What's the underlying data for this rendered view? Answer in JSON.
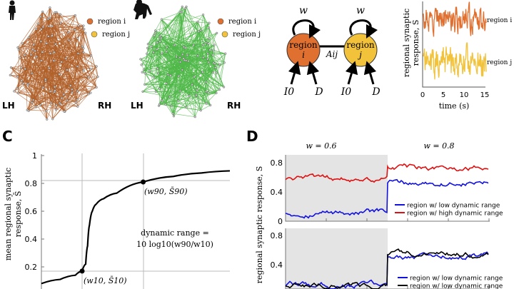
{
  "panels": {
    "c_label": "C",
    "d_label": "D"
  },
  "panel_a": {
    "brains": [
      {
        "species": "human",
        "color": "#b0602a",
        "lh": "LH",
        "rh": "RH"
      },
      {
        "species": "chimpanzee",
        "color": "#4fb848",
        "lh": "LH",
        "rh": "RH"
      }
    ],
    "region_i": "region i",
    "region_j": "region j",
    "region_i_color": "#e07030",
    "region_j_color": "#f2c23a"
  },
  "panel_b": {
    "node_i": {
      "line1": "region",
      "line2": "i"
    },
    "node_j": {
      "line1": "region",
      "line2": "j"
    },
    "self_weight": "w",
    "coupling": "Aij",
    "inputs": [
      "I0",
      "D",
      "I0",
      "D"
    ],
    "trace_ylabel_1": "regional synaptic",
    "trace_ylabel_2": "response, S",
    "trace_xlabel": "time (s)",
    "trace_xticks": [
      "0",
      "5",
      "10",
      "15"
    ],
    "trace_labels": [
      "region i",
      "region j"
    ]
  },
  "chart_data": [
    {
      "type": "line",
      "title": "",
      "ylabel": "mean regional synaptic response, S̄",
      "ylabel_1": "mean regional synaptic",
      "ylabel_2": "response, S̄",
      "ylim": [
        0.07,
        1
      ],
      "yticks": [
        "1",
        "0.8",
        "0.6",
        "0.4",
        "0.2"
      ],
      "ytick_values": [
        1,
        0.8,
        0.6,
        0.4,
        0.2
      ],
      "x": [
        0,
        0.1,
        0.18,
        0.216,
        0.235,
        0.245,
        0.255,
        0.27,
        0.29,
        0.33,
        0.4,
        0.54,
        0.7,
        0.85,
        1.0
      ],
      "y": [
        0.08,
        0.11,
        0.14,
        0.17,
        0.22,
        0.35,
        0.5,
        0.6,
        0.65,
        0.69,
        0.73,
        0.81,
        0.85,
        0.875,
        0.89
      ],
      "markers": [
        {
          "label": "(w10, S̄10)",
          "x": 0.216,
          "y": 0.17
        },
        {
          "label": "(w90, S̄90)",
          "x": 0.54,
          "y": 0.81
        }
      ],
      "annotation_1": "dynamic range =",
      "annotation_2": "10 log10(w90/w10)"
    },
    {
      "type": "line",
      "ylabel": "regional synaptic response, S",
      "conditions": [
        "w = 0.6",
        "w = 0.8"
      ],
      "subplots": [
        {
          "ylim": [
            0,
            0.9
          ],
          "yticks": [
            "0.8",
            "0.4",
            "0"
          ],
          "ytick_values": [
            0.8,
            0.4,
            0
          ],
          "series": [
            {
              "name": "region w/ low dynamic range",
              "color": "#1010e0",
              "mean_before": 0.12,
              "mean_after": 0.52
            },
            {
              "name": "region w/ high dynamic range",
              "color": "#e01010",
              "mean_before": 0.58,
              "mean_after": 0.73
            }
          ]
        },
        {
          "ylim": [
            0.07,
            0.9
          ],
          "yticks": [
            "0.8",
            "0.4"
          ],
          "ytick_values": [
            0.8,
            0.4
          ],
          "series": [
            {
              "name": "region w/ low dynamic range",
              "color": "#1010e0",
              "mean_before": 0.12,
              "mean_after": 0.52
            },
            {
              "name": "region w/ low dynamic range",
              "color": "#000000",
              "mean_before": 0.12,
              "mean_after": 0.54
            }
          ]
        }
      ]
    }
  ]
}
